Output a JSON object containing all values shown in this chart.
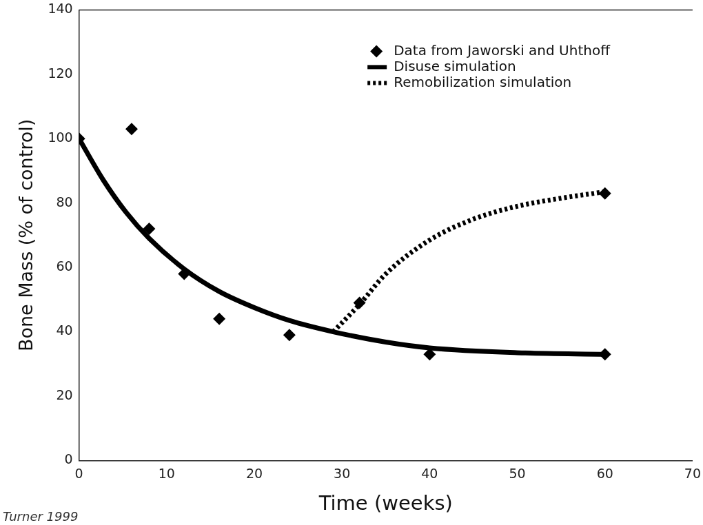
{
  "chart_data": {
    "type": "scatter",
    "xlabel": "Time (weeks)",
    "ylabel": "Bone Mass (% of control)",
    "xlim": [
      0,
      70
    ],
    "xticks": [
      0,
      10,
      20,
      30,
      40,
      50,
      60,
      70
    ],
    "ylim": [
      0,
      140
    ],
    "yticks": [
      0,
      20,
      40,
      60,
      80,
      100,
      120,
      140
    ],
    "grid": false,
    "legend": "top right",
    "annotations": [
      "Turner 1999"
    ],
    "series": [
      {
        "name": "Data from Jaworski and Uhthoff",
        "marker": "diamond",
        "color": "#000000",
        "x": [
          0,
          6,
          8,
          12,
          16,
          24,
          32,
          40,
          60,
          60
        ],
        "values": [
          100,
          103,
          72,
          58,
          44,
          39,
          49,
          33,
          83,
          33
        ]
      },
      {
        "name": "Disuse simulation",
        "type": "line",
        "marker": "none",
        "line_style": "solid",
        "color": "#000000",
        "x": [
          0,
          2.8,
          5.4,
          8,
          12,
          16,
          20,
          24,
          29,
          35,
          40,
          50,
          60
        ],
        "values": [
          100,
          87,
          77,
          69,
          59.5,
          52.5,
          47.5,
          43.5,
          40,
          36.8,
          35,
          33.5,
          33
        ]
      },
      {
        "name": "Remobilization simulation",
        "type": "line",
        "marker": "none",
        "line_style": "dotted",
        "color": "#000000",
        "x": [
          29,
          32,
          35,
          40,
          45,
          50,
          55,
          60
        ],
        "values": [
          40,
          48.5,
          58,
          68.5,
          75,
          79,
          81.5,
          83.5
        ]
      }
    ]
  }
}
